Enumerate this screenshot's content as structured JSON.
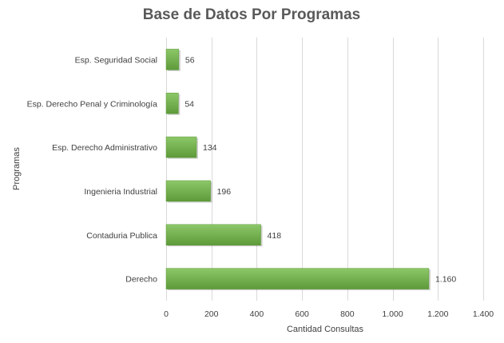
{
  "chart_data": {
    "type": "bar",
    "orientation": "horizontal",
    "title": "Base de Datos Por Programas",
    "xlabel": "Cantidad Consultas",
    "ylabel": "Programas",
    "categories": [
      "Esp. Seguridad Social",
      "Esp. Derecho Penal y Criminología",
      "Esp. Derecho Administrativo",
      "Ingenieria Industrial",
      "Contaduria Publica",
      "Derecho"
    ],
    "values": [
      56,
      54,
      134,
      196,
      418,
      1160
    ],
    "value_labels": [
      "56",
      "54",
      "134",
      "196",
      "418",
      "1.160"
    ],
    "xlim": [
      0,
      1400
    ],
    "xticks": [
      0,
      200,
      400,
      600,
      800,
      1000,
      1200,
      1400
    ],
    "xtick_labels": [
      "0",
      "200",
      "400",
      "600",
      "800",
      "1.000",
      "1.200",
      "1.400"
    ],
    "grid": true,
    "legend": "none",
    "bar_color": "#70ad47",
    "bar_color_light": "#8cc768",
    "bar_color_dark": "#5e9a3a"
  }
}
